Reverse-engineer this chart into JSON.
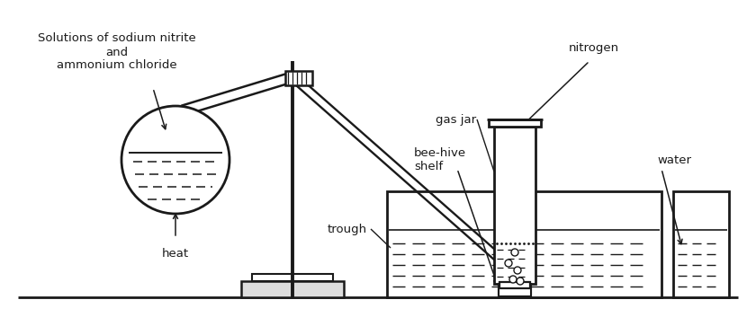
{
  "bg_color": "#ffffff",
  "line_color": "#1a1a1a",
  "lw": 1.8,
  "labels": {
    "solutions": "Solutions of sodium nitrite\nand\nammonium chloride",
    "heat": "heat",
    "gas_jar": "gas jar",
    "bee_hive": "bee-hive\nshelf",
    "trough": "trough",
    "nitrogen": "nitrogen",
    "water": "water"
  },
  "figsize": [
    8.4,
    3.73
  ],
  "dpi": 100
}
